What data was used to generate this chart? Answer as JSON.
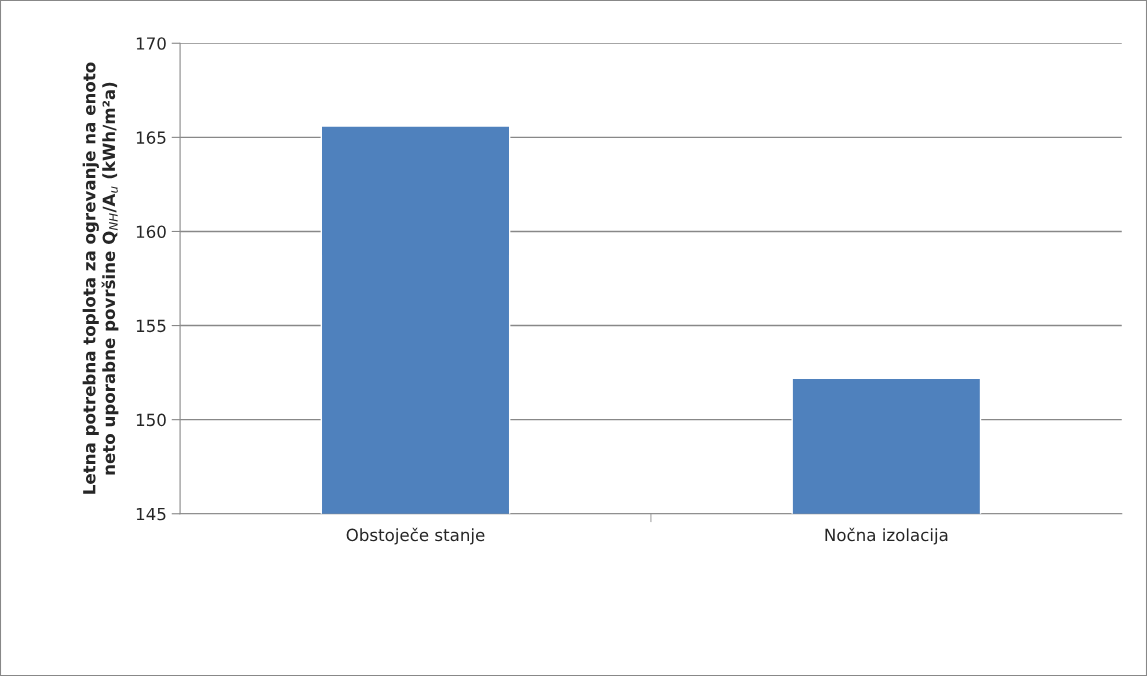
{
  "chart_data": {
    "type": "bar",
    "ylabel": "Letna potrebna toplota za ogrevanje na enoto\nneto uporabne površine Q$_{NH}$/A$_{u}$ (kWh/m²a)",
    "categories": [
      "Obstoječe stanje",
      "Nočna izolacija"
    ],
    "values": [
      165.6,
      152.2
    ],
    "color": "#4f81bd",
    "ylim": [
      145,
      170
    ],
    "yticks": [
      145,
      150,
      155,
      160,
      165,
      170
    ],
    "grid": "y"
  }
}
